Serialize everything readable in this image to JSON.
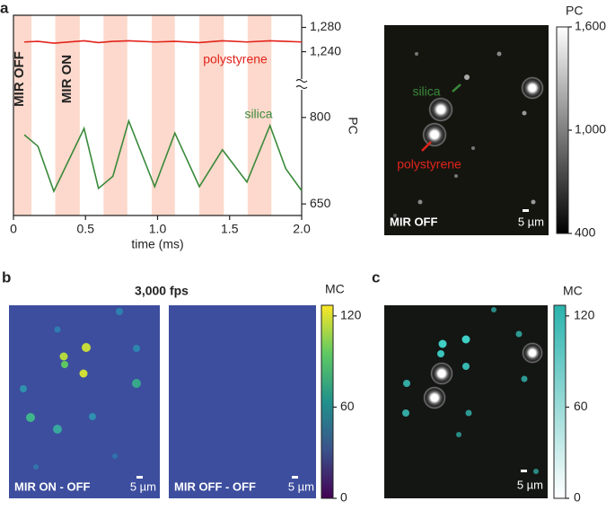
{
  "chart_data": [
    {
      "type": "line",
      "panel_label": "a",
      "xlabel": "time (ms)",
      "ylabel": "PC",
      "xlim": [
        0,
        2.0
      ],
      "xticks": [
        0,
        {
          "value": 0.5,
          "label": "0.5"
        },
        {
          "value": 1,
          "label": "1.0"
        },
        {
          "value": 1.5,
          "label": "1.5"
        },
        {
          "value": 2,
          "label": "2.0"
        }
      ],
      "y_segments": [
        {
          "ylim": [
            1195,
            1300
          ],
          "yticks": [
            {
              "value": 1280,
              "label": "1,280"
            },
            {
              "value": 1240,
              "label": "1,240"
            }
          ]
        },
        {
          "ylim": [
            630,
            848
          ],
          "yticks": [
            800,
            650
          ]
        }
      ],
      "shaded_intervals": [
        [
          0,
          0.125
        ],
        [
          0.29,
          0.46
        ],
        [
          0.625,
          0.79
        ],
        [
          0.96,
          1.12
        ],
        [
          1.29,
          1.46
        ],
        [
          1.625,
          1.79
        ]
      ],
      "shade_color": "#fcd9cc",
      "annotations": [
        "MIR OFF",
        "MIR ON"
      ],
      "x": [
        0.075,
        0.17,
        0.28,
        0.49,
        0.59,
        0.69,
        0.8,
        0.98,
        1.12,
        1.29,
        1.45,
        1.62,
        1.78,
        1.89,
        2.0
      ],
      "series": [
        {
          "name": "polystyrene",
          "color": "#e2231a",
          "values": [
            1256,
            1257,
            1254,
            1258,
            1255,
            1257,
            1258,
            1256,
            1257,
            1255,
            1258,
            1256,
            1258,
            1257,
            1256
          ]
        },
        {
          "name": "silica",
          "color": "#3a8a3a",
          "values": [
            770,
            750,
            672,
            781,
            677,
            698,
            794,
            680,
            773,
            680,
            744,
            688,
            786,
            711,
            673
          ]
        }
      ]
    },
    {
      "type": "colorbar",
      "label": "PC",
      "ylim": [
        400,
        1600
      ],
      "yticks": [
        400,
        {
          "value": 1000,
          "label": "1,000"
        },
        {
          "value": 1600,
          "label": "1,600"
        }
      ],
      "colors": [
        "#000000",
        "#ffffff"
      ]
    },
    {
      "type": "colorbar",
      "label": "MC",
      "ylim": [
        0,
        127
      ],
      "yticks": [
        0,
        60,
        120
      ],
      "colors": [
        "#440154",
        "#3b528b",
        "#21918c",
        "#5ec962",
        "#fde725"
      ]
    },
    {
      "type": "colorbar",
      "label": "MC",
      "ylim": [
        0,
        127
      ],
      "yticks": [
        0,
        60,
        120
      ],
      "colors": [
        "#ffffff",
        "#2ab3ad"
      ]
    }
  ],
  "panels": {
    "b": "b",
    "c": "c",
    "b_title": "3,000 fps"
  },
  "images": [
    {
      "labels": [
        "silica",
        "polystyrene",
        "MIR OFF",
        "5 µm"
      ]
    },
    {
      "labels": [
        "MIR ON - OFF",
        "5 µm"
      ]
    },
    {
      "labels": [
        "MIR OFF - OFF",
        "5 µm"
      ]
    },
    {
      "labels": [
        "5 µm"
      ]
    }
  ]
}
